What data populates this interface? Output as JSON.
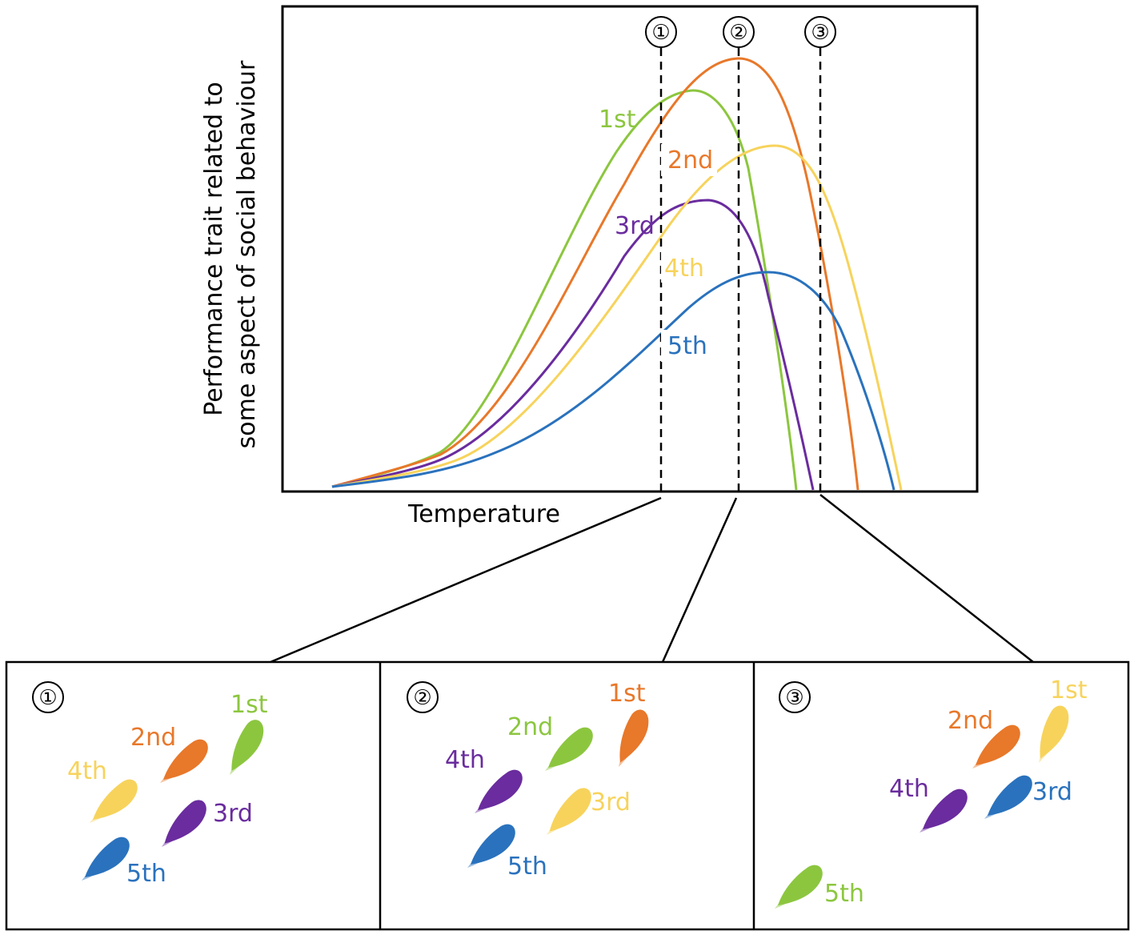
{
  "figure": {
    "y_axis_label_line1": "Performance trait related to",
    "y_axis_label_line2": "some aspect of social behaviour",
    "x_axis_label": "Temperature"
  },
  "colors": {
    "green": "#8cc63f",
    "orange": "#e8782a",
    "purple": "#6a2c9e",
    "yellow": "#f7d35c",
    "blue": "#2a72bd"
  },
  "chart_data": {
    "type": "line",
    "title": "",
    "xlabel": "Temperature",
    "ylabel": "Performance trait related to some aspect of social behaviour",
    "series": [
      {
        "name": "1st",
        "color_key": "green"
      },
      {
        "name": "2nd",
        "color_key": "orange"
      },
      {
        "name": "3rd",
        "color_key": "purple"
      },
      {
        "name": "4th",
        "color_key": "yellow"
      },
      {
        "name": "5th",
        "color_key": "blue"
      }
    ],
    "markers": [
      "①",
      "②",
      "③"
    ]
  },
  "panels": [
    {
      "marker": "①",
      "fish": [
        {
          "rank": "1st",
          "color_key": "green"
        },
        {
          "rank": "2nd",
          "color_key": "orange"
        },
        {
          "rank": "3rd",
          "color_key": "purple"
        },
        {
          "rank": "4th",
          "color_key": "yellow"
        },
        {
          "rank": "5th",
          "color_key": "blue"
        }
      ]
    },
    {
      "marker": "②",
      "fish": [
        {
          "rank": "1st",
          "color_key": "orange"
        },
        {
          "rank": "2nd",
          "color_key": "green"
        },
        {
          "rank": "3rd",
          "color_key": "yellow"
        },
        {
          "rank": "4th",
          "color_key": "purple"
        },
        {
          "rank": "5th",
          "color_key": "blue"
        }
      ]
    },
    {
      "marker": "③",
      "fish": [
        {
          "rank": "1st",
          "color_key": "yellow"
        },
        {
          "rank": "2nd",
          "color_key": "orange"
        },
        {
          "rank": "3rd",
          "color_key": "blue"
        },
        {
          "rank": "4th",
          "color_key": "purple"
        },
        {
          "rank": "5th",
          "color_key": "green"
        }
      ]
    }
  ]
}
